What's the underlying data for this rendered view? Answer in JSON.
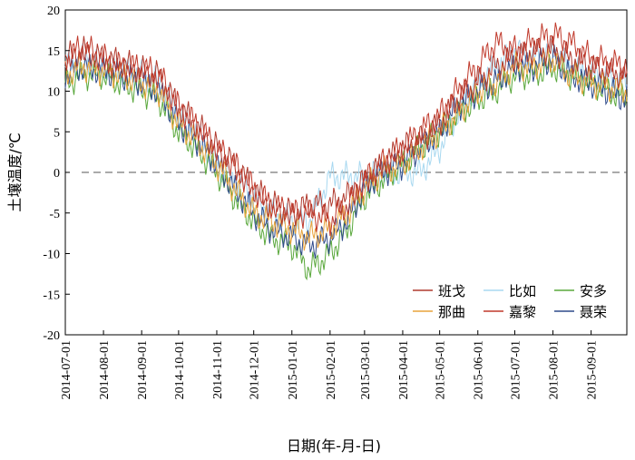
{
  "chart_data": {
    "type": "line",
    "xlabel": "日期(年-月-日)",
    "ylabel": "土壤温度/℃",
    "ylim": [
      -20,
      20
    ],
    "yticks": [
      -20,
      -15,
      -10,
      -5,
      0,
      5,
      10,
      15,
      20
    ],
    "xlim": [
      "2014-07-01",
      "2015-09-30"
    ],
    "xticks": [
      "2014-07-01",
      "2014-08-01",
      "2014-09-01",
      "2014-10-01",
      "2014-11-01",
      "2014-12-01",
      "2015-01-01",
      "2015-02-01",
      "2015-03-01",
      "2015-04-01",
      "2015-05-01",
      "2015-06-01",
      "2015-07-01",
      "2015-08-01",
      "2015-09-01"
    ],
    "grid": false,
    "legend": "bottom-right",
    "reference_line": {
      "y": 0,
      "style": "dashed"
    },
    "series": [
      {
        "name": "班戈",
        "color": "#b03a2e",
        "points": [
          [
            "2014-07-01",
            14
          ],
          [
            "2014-07-15",
            15
          ],
          [
            "2014-08-01",
            14
          ],
          [
            "2014-08-15",
            13.5
          ],
          [
            "2014-09-01",
            12.5
          ],
          [
            "2014-09-15",
            12
          ],
          [
            "2014-10-01",
            8
          ],
          [
            "2014-10-15",
            6
          ],
          [
            "2014-11-01",
            3
          ],
          [
            "2014-11-15",
            1
          ],
          [
            "2014-12-01",
            -2
          ],
          [
            "2014-12-15",
            -4
          ],
          [
            "2015-01-01",
            -5
          ],
          [
            "2015-01-15",
            -4
          ],
          [
            "2015-02-01",
            -4
          ],
          [
            "2015-02-15",
            -3
          ],
          [
            "2015-03-01",
            -1
          ],
          [
            "2015-03-15",
            1
          ],
          [
            "2015-04-01",
            3
          ],
          [
            "2015-04-15",
            4
          ],
          [
            "2015-05-01",
            6
          ],
          [
            "2015-05-15",
            9
          ],
          [
            "2015-06-01",
            11
          ],
          [
            "2015-06-15",
            13
          ],
          [
            "2015-07-01",
            14
          ],
          [
            "2015-07-15",
            15
          ],
          [
            "2015-08-01",
            15
          ],
          [
            "2015-08-15",
            14
          ],
          [
            "2015-09-01",
            13
          ],
          [
            "2015-09-30",
            12
          ]
        ]
      },
      {
        "name": "比如",
        "color": "#a8d8f0",
        "points": [
          [
            "2014-07-01",
            13
          ],
          [
            "2014-07-15",
            14
          ],
          [
            "2014-08-01",
            13
          ],
          [
            "2014-08-15",
            12.5
          ],
          [
            "2014-09-01",
            12
          ],
          [
            "2014-09-15",
            11
          ],
          [
            "2014-10-01",
            7
          ],
          [
            "2014-10-15",
            5
          ],
          [
            "2014-11-01",
            1
          ],
          [
            "2014-11-15",
            -1
          ],
          [
            "2014-12-01",
            -3
          ],
          [
            "2014-12-15",
            -5
          ],
          [
            "2015-01-01",
            -6
          ],
          [
            "2015-01-15",
            -6
          ],
          [
            "2015-02-01",
            -0.5
          ],
          [
            "2015-02-15",
            -0.5
          ],
          [
            "2015-03-01",
            -0.5
          ],
          [
            "2015-03-15",
            0
          ],
          [
            "2015-04-01",
            0
          ],
          [
            "2015-04-15",
            0
          ],
          [
            "2015-05-01",
            3
          ],
          [
            "2015-05-15",
            7
          ],
          [
            "2015-06-01",
            11
          ],
          [
            "2015-06-15",
            13
          ],
          [
            "2015-07-01",
            15
          ],
          [
            "2015-07-15",
            14
          ],
          [
            "2015-08-01",
            15
          ],
          [
            "2015-08-15",
            13
          ],
          [
            "2015-09-01",
            12
          ],
          [
            "2015-09-30",
            11
          ]
        ]
      },
      {
        "name": "安多",
        "color": "#5aa83c",
        "points": [
          [
            "2014-07-01",
            11
          ],
          [
            "2014-07-15",
            12
          ],
          [
            "2014-08-01",
            12
          ],
          [
            "2014-08-15",
            11
          ],
          [
            "2014-09-01",
            10
          ],
          [
            "2014-09-15",
            9
          ],
          [
            "2014-10-01",
            5
          ],
          [
            "2014-10-15",
            3
          ],
          [
            "2014-11-01",
            0
          ],
          [
            "2014-11-15",
            -3
          ],
          [
            "2014-12-01",
            -6
          ],
          [
            "2014-12-15",
            -8
          ],
          [
            "2015-01-01",
            -9
          ],
          [
            "2015-01-15",
            -12
          ],
          [
            "2015-02-01",
            -10
          ],
          [
            "2015-02-15",
            -7
          ],
          [
            "2015-03-01",
            -3
          ],
          [
            "2015-03-15",
            -1
          ],
          [
            "2015-04-01",
            1
          ],
          [
            "2015-04-15",
            3
          ],
          [
            "2015-05-01",
            5
          ],
          [
            "2015-05-15",
            7
          ],
          [
            "2015-06-01",
            9
          ],
          [
            "2015-06-15",
            10
          ],
          [
            "2015-07-01",
            12
          ],
          [
            "2015-07-15",
            12
          ],
          [
            "2015-08-01",
            13
          ],
          [
            "2015-08-15",
            12
          ],
          [
            "2015-09-01",
            11
          ],
          [
            "2015-09-30",
            9
          ]
        ]
      },
      {
        "name": "那曲",
        "color": "#e8a33c",
        "points": [
          [
            "2014-07-01",
            12
          ],
          [
            "2014-07-15",
            13
          ],
          [
            "2014-08-01",
            12.5
          ],
          [
            "2014-08-15",
            12
          ],
          [
            "2014-09-01",
            11
          ],
          [
            "2014-09-15",
            10
          ],
          [
            "2014-10-01",
            6
          ],
          [
            "2014-10-15",
            4
          ],
          [
            "2014-11-01",
            1
          ],
          [
            "2014-11-15",
            -2
          ],
          [
            "2014-12-01",
            -5
          ],
          [
            "2014-12-15",
            -6
          ],
          [
            "2015-01-01",
            -7
          ],
          [
            "2015-01-15",
            -8
          ],
          [
            "2015-02-01",
            -7
          ],
          [
            "2015-02-15",
            -5
          ],
          [
            "2015-03-01",
            -2
          ],
          [
            "2015-03-15",
            0
          ],
          [
            "2015-04-01",
            1
          ],
          [
            "2015-04-15",
            3
          ],
          [
            "2015-05-01",
            5
          ],
          [
            "2015-05-15",
            7
          ],
          [
            "2015-06-01",
            10
          ],
          [
            "2015-06-15",
            11
          ],
          [
            "2015-07-01",
            13
          ],
          [
            "2015-07-15",
            13
          ],
          [
            "2015-08-01",
            14
          ],
          [
            "2015-08-15",
            12
          ],
          [
            "2015-09-01",
            11
          ],
          [
            "2015-09-30",
            10
          ]
        ]
      },
      {
        "name": "嘉黎",
        "color": "#c0392b",
        "points": [
          [
            "2014-07-01",
            14
          ],
          [
            "2014-07-15",
            15.5
          ],
          [
            "2014-08-01",
            14
          ],
          [
            "2014-08-15",
            13
          ],
          [
            "2014-09-01",
            13
          ],
          [
            "2014-09-15",
            12
          ],
          [
            "2014-10-01",
            8
          ],
          [
            "2014-10-15",
            6
          ],
          [
            "2014-11-01",
            3
          ],
          [
            "2014-11-15",
            1
          ],
          [
            "2014-12-01",
            -2
          ],
          [
            "2014-12-15",
            -4
          ],
          [
            "2015-01-01",
            -5
          ],
          [
            "2015-01-15",
            -5
          ],
          [
            "2015-02-01",
            -6
          ],
          [
            "2015-02-15",
            -4
          ],
          [
            "2015-03-01",
            -1
          ],
          [
            "2015-03-15",
            1
          ],
          [
            "2015-04-01",
            3
          ],
          [
            "2015-04-15",
            5
          ],
          [
            "2015-05-01",
            7
          ],
          [
            "2015-05-15",
            10
          ],
          [
            "2015-06-01",
            13
          ],
          [
            "2015-06-15",
            16
          ],
          [
            "2015-07-01",
            15
          ],
          [
            "2015-07-15",
            16
          ],
          [
            "2015-08-01",
            17
          ],
          [
            "2015-08-15",
            16
          ],
          [
            "2015-09-01",
            14
          ],
          [
            "2015-09-30",
            13
          ]
        ]
      },
      {
        "name": "聂荣",
        "color": "#2f4a8a",
        "points": [
          [
            "2014-07-01",
            12
          ],
          [
            "2014-07-15",
            13
          ],
          [
            "2014-08-01",
            12.5
          ],
          [
            "2014-08-15",
            12
          ],
          [
            "2014-09-01",
            11
          ],
          [
            "2014-09-15",
            10
          ],
          [
            "2014-10-01",
            6
          ],
          [
            "2014-10-15",
            4
          ],
          [
            "2014-11-01",
            1
          ],
          [
            "2014-11-15",
            -2
          ],
          [
            "2014-12-01",
            -5
          ],
          [
            "2014-12-15",
            -7
          ],
          [
            "2015-01-01",
            -8
          ],
          [
            "2015-01-15",
            -9
          ],
          [
            "2015-02-01",
            -8
          ],
          [
            "2015-02-15",
            -6
          ],
          [
            "2015-03-01",
            -2
          ],
          [
            "2015-03-15",
            0
          ],
          [
            "2015-04-01",
            1
          ],
          [
            "2015-04-15",
            3
          ],
          [
            "2015-05-01",
            5
          ],
          [
            "2015-05-15",
            8
          ],
          [
            "2015-06-01",
            10
          ],
          [
            "2015-06-15",
            11
          ],
          [
            "2015-07-01",
            13
          ],
          [
            "2015-07-15",
            13
          ],
          [
            "2015-08-01",
            14
          ],
          [
            "2015-08-15",
            12
          ],
          [
            "2015-09-01",
            11
          ],
          [
            "2015-09-30",
            9
          ]
        ]
      }
    ]
  }
}
